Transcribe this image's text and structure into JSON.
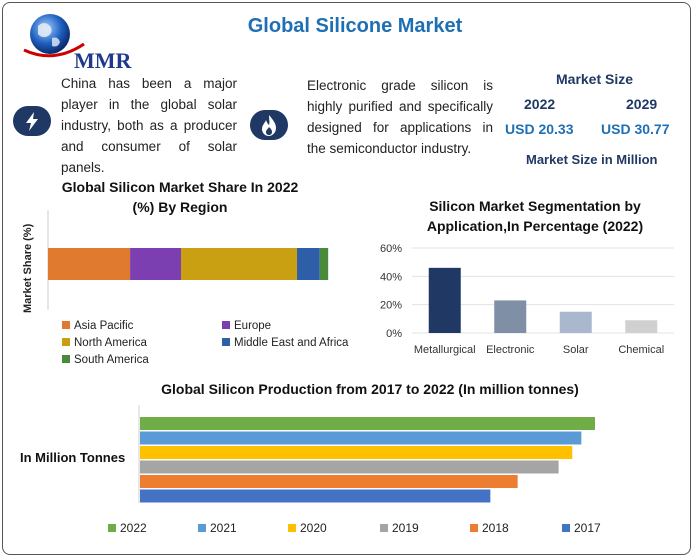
{
  "header": {
    "title": "Global Silicone Market",
    "logo_text": "MMR"
  },
  "facts": [
    {
      "icon": "lightning-icon",
      "text": "China has been a major player in the global solar industry, both as a producer and consumer of solar panels."
    },
    {
      "icon": "flame-icon",
      "text": "Electronic grade silicon is highly purified and specifically designed for applications in the semiconductor industry."
    }
  ],
  "market_size": {
    "label": "Market Size",
    "year_a": "2022",
    "year_b": "2029",
    "value_a": "USD 20.33",
    "value_b": "USD 30.77",
    "unit_note": "Market Size in Million"
  },
  "colors": {
    "asia_pacific": "#e07a2f",
    "europe": "#7b3fb2",
    "north_america": "#c9a012",
    "mea": "#2e5ea8",
    "south_america": "#4a8a3c",
    "seg_metallurgical": "#1f3864",
    "seg_electronic": "#7f8fa6",
    "seg_solar": "#a9b8cf",
    "seg_chemical": "#d0d0d0",
    "y2022": "#70ad47",
    "y2021": "#5b9bd5",
    "y2020": "#ffc000",
    "y2019": "#a5a5a5",
    "y2018": "#ed7d31",
    "y2017": "#4472c4"
  },
  "chart_data": [
    {
      "type": "bar",
      "orientation": "horizontal-stacked",
      "title": "Global Silicon Market Share In 2022 (%) By Region",
      "ylabel": "Market Share (%)",
      "series": [
        {
          "name": "Asia Pacific",
          "values": [
            29
          ]
        },
        {
          "name": "Europe",
          "values": [
            18
          ]
        },
        {
          "name": "North America",
          "values": [
            41
          ]
        },
        {
          "name": "Middle East and Africa",
          "values": [
            8
          ]
        },
        {
          "name": "South America",
          "values": [
            3
          ]
        }
      ],
      "legend_placement": "bottom"
    },
    {
      "type": "bar",
      "title": "Silicon Market Segmentation by Application,In Percentage (2022)",
      "categories": [
        "Metallurgical",
        "Electronic",
        "Solar",
        "Chemical"
      ],
      "values": [
        46,
        23,
        15,
        9
      ],
      "ylim": [
        0,
        60
      ],
      "yticks": [
        "0%",
        "20%",
        "40%",
        "60%"
      ]
    },
    {
      "type": "bar",
      "orientation": "horizontal",
      "title": "Global Silicon Production from 2017 to 2022 (In million tonnes)",
      "category_label": "In Million Tonnes",
      "series": [
        {
          "name": "2022",
          "value": 100
        },
        {
          "name": "2021",
          "value": 97
        },
        {
          "name": "2020",
          "value": 95
        },
        {
          "name": "2019",
          "value": 92
        },
        {
          "name": "2018",
          "value": 83
        },
        {
          "name": "2017",
          "value": 77
        }
      ],
      "legend_order": [
        "2022",
        "2021",
        "2020",
        "2019",
        "2018",
        "2017"
      ],
      "legend_placement": "bottom"
    }
  ]
}
